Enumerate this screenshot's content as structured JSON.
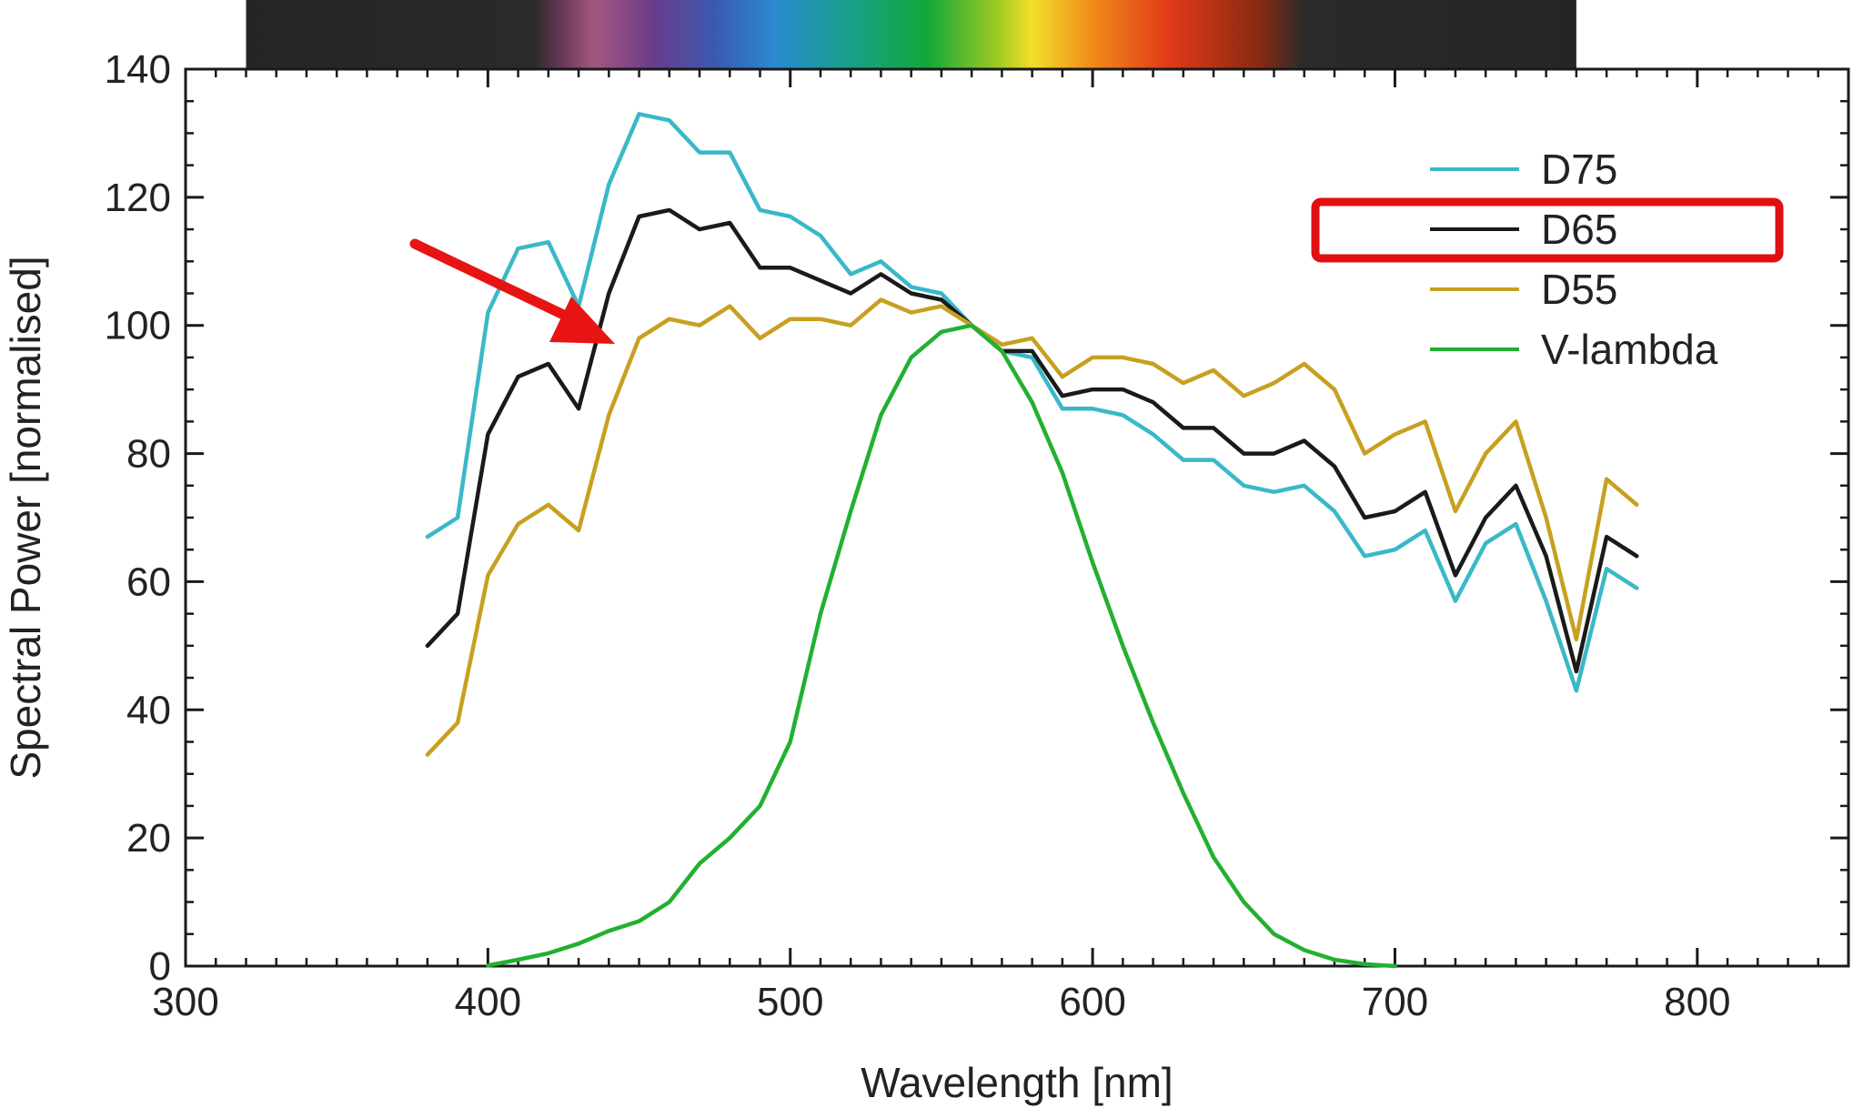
{
  "chart_data": {
    "type": "line",
    "title": "",
    "xlabel": "Wavelength [nm]",
    "ylabel": "Spectral Power [normalised]",
    "xlim": [
      300,
      850
    ],
    "ylim": [
      0,
      140
    ],
    "xticks": [
      300,
      400,
      500,
      600,
      700,
      800
    ],
    "yticks": [
      0,
      20,
      40,
      60,
      80,
      100,
      120,
      140
    ],
    "legend_position": "top-right",
    "highlighted_legend_entry": "D65",
    "annotation": "red arrow pointing at the D55 curve near 440 nm",
    "spectrum_bar": {
      "x_start": 320,
      "x_end": 760,
      "stops": [
        {
          "wl": 320,
          "color": "#252525"
        },
        {
          "wl": 415,
          "color": "#2a2a2a"
        },
        {
          "wl": 425,
          "color": "#6a3a5a"
        },
        {
          "wl": 435,
          "color": "#a2587e"
        },
        {
          "wl": 455,
          "color": "#6a3c8c"
        },
        {
          "wl": 475,
          "color": "#3a5ab0"
        },
        {
          "wl": 495,
          "color": "#2a8ad0"
        },
        {
          "wl": 520,
          "color": "#18a088"
        },
        {
          "wl": 545,
          "color": "#12a83a"
        },
        {
          "wl": 570,
          "color": "#a8cc22"
        },
        {
          "wl": 580,
          "color": "#f2e02a"
        },
        {
          "wl": 600,
          "color": "#f08a1a"
        },
        {
          "wl": 625,
          "color": "#e23a18"
        },
        {
          "wl": 655,
          "color": "#8a2a12"
        },
        {
          "wl": 670,
          "color": "#2a2a2a"
        },
        {
          "wl": 760,
          "color": "#252525"
        }
      ]
    },
    "series": [
      {
        "name": "D75",
        "color": "#3ab8c8",
        "x": [
          380,
          390,
          400,
          410,
          420,
          430,
          440,
          450,
          460,
          470,
          480,
          490,
          500,
          510,
          520,
          530,
          540,
          550,
          560,
          570,
          580,
          590,
          600,
          610,
          620,
          630,
          640,
          650,
          660,
          670,
          680,
          690,
          700,
          710,
          720,
          730,
          740,
          750,
          760,
          770,
          780
        ],
        "values": [
          67,
          70,
          102,
          112,
          113,
          103,
          122,
          133,
          132,
          127,
          127,
          118,
          117,
          114,
          108,
          110,
          106,
          105,
          100,
          96,
          95,
          87,
          87,
          86,
          83,
          79,
          79,
          75,
          74,
          75,
          71,
          64,
          65,
          68,
          57,
          66,
          69,
          57,
          43,
          62,
          59
        ]
      },
      {
        "name": "D65",
        "color": "#1a1a1a",
        "x": [
          380,
          390,
          400,
          410,
          420,
          430,
          440,
          450,
          460,
          470,
          480,
          490,
          500,
          510,
          520,
          530,
          540,
          550,
          560,
          570,
          580,
          590,
          600,
          610,
          620,
          630,
          640,
          650,
          660,
          670,
          680,
          690,
          700,
          710,
          720,
          730,
          740,
          750,
          760,
          770,
          780
        ],
        "values": [
          50,
          55,
          83,
          92,
          94,
          87,
          105,
          117,
          118,
          115,
          116,
          109,
          109,
          107,
          105,
          108,
          105,
          104,
          100,
          96,
          96,
          89,
          90,
          90,
          88,
          84,
          84,
          80,
          80,
          82,
          78,
          70,
          71,
          74,
          61,
          70,
          75,
          64,
          46,
          67,
          64
        ]
      },
      {
        "name": "D55",
        "color": "#c8a020",
        "x": [
          380,
          390,
          400,
          410,
          420,
          430,
          440,
          450,
          460,
          470,
          480,
          490,
          500,
          510,
          520,
          530,
          540,
          550,
          560,
          570,
          580,
          590,
          600,
          610,
          620,
          630,
          640,
          650,
          660,
          670,
          680,
          690,
          700,
          710,
          720,
          730,
          740,
          750,
          760,
          770,
          780
        ],
        "values": [
          33,
          38,
          61,
          69,
          72,
          68,
          86,
          98,
          101,
          100,
          103,
          98,
          101,
          101,
          100,
          104,
          102,
          103,
          100,
          97,
          98,
          92,
          95,
          95,
          94,
          91,
          93,
          89,
          91,
          94,
          90,
          80,
          83,
          85,
          71,
          80,
          85,
          70,
          51,
          76,
          72
        ]
      },
      {
        "name": "V-lambda",
        "color": "#22b030",
        "x": [
          400,
          410,
          420,
          430,
          440,
          450,
          460,
          470,
          480,
          490,
          500,
          510,
          520,
          530,
          540,
          550,
          560,
          570,
          580,
          590,
          600,
          610,
          620,
          630,
          640,
          650,
          660,
          670,
          680,
          690,
          700
        ],
        "values": [
          0.1,
          1,
          2,
          3.5,
          5.5,
          7,
          10,
          16,
          20,
          25,
          35,
          55,
          71,
          86,
          95,
          99,
          100,
          96,
          88,
          77,
          63,
          50,
          38,
          27,
          17,
          10,
          5,
          2.5,
          1,
          0.3,
          0
        ]
      }
    ]
  }
}
